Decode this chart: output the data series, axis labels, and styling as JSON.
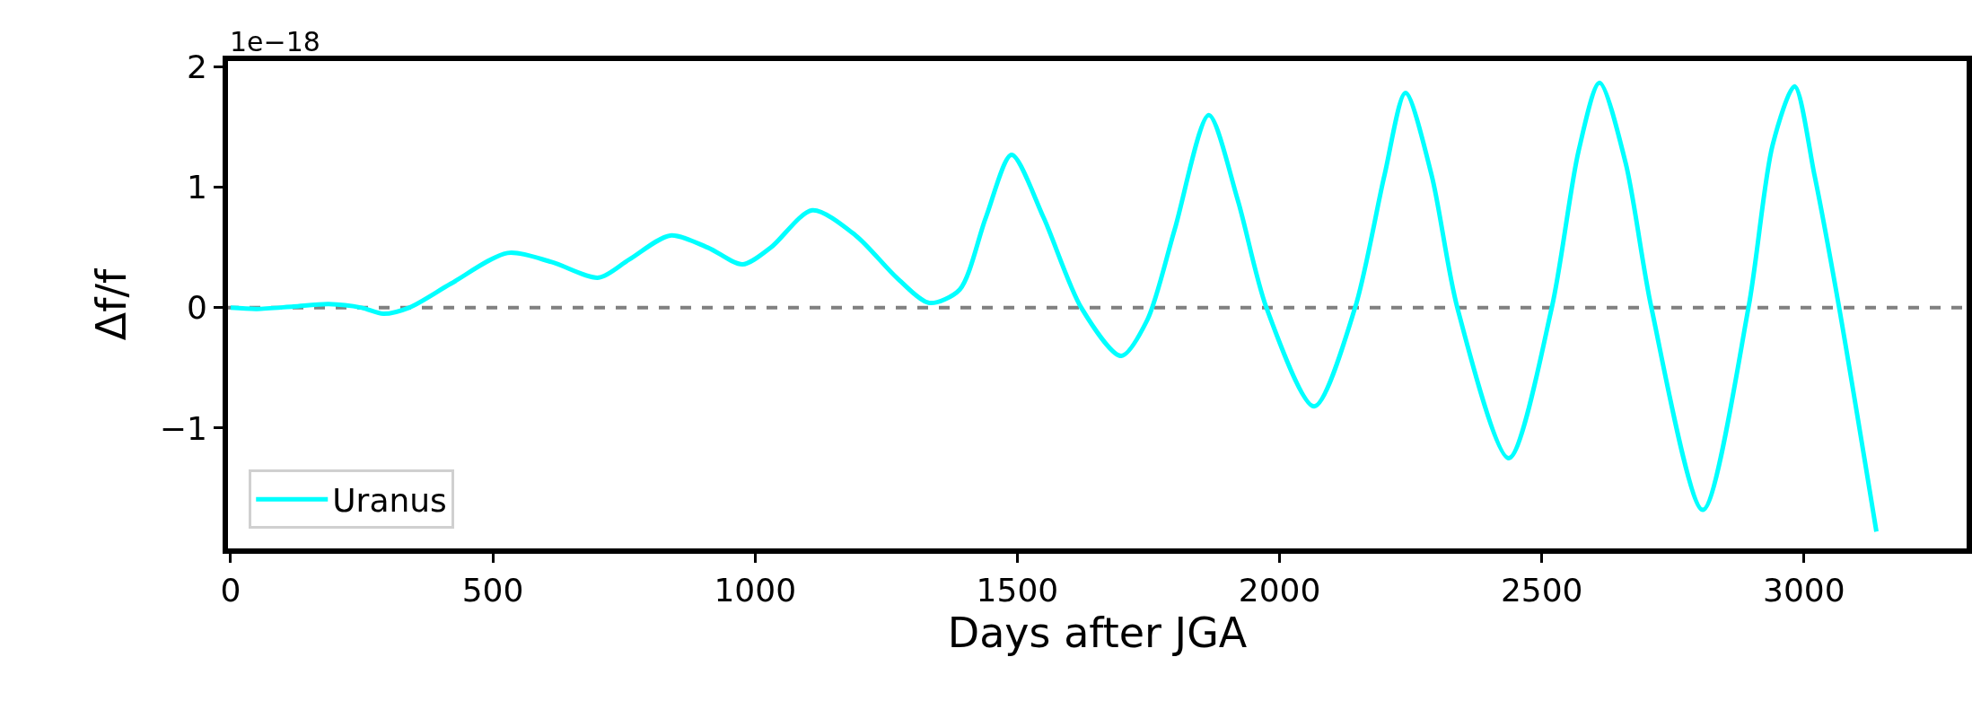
{
  "chart_data": {
    "type": "line",
    "xlabel": "Days after JGA",
    "ylabel": "Δf/f",
    "annotations": [
      "1e−18"
    ],
    "x": [
      0,
      50,
      120,
      187,
      250,
      291,
      340,
      420,
      528,
      612,
      702,
      760,
      838,
      910,
      976,
      1030,
      1109,
      1192,
      1270,
      1332,
      1390,
      1440,
      1489,
      1550,
      1622,
      1698,
      1748,
      1800,
      1865,
      1920,
      1975,
      2066,
      2144,
      2200,
      2240,
      2290,
      2339,
      2437,
      2519,
      2570,
      2610,
      2660,
      2709,
      2807,
      2894,
      2940,
      2982,
      3020,
      3067,
      3138
    ],
    "series": [
      {
        "name": "Uranus",
        "color": "#00ffff",
        "values": [
          0,
          -0.01,
          0.01,
          0.03,
          0.0,
          -0.05,
          0.0,
          0.2,
          0.455,
          0.38,
          0.25,
          0.4,
          0.6,
          0.5,
          0.36,
          0.5,
          0.81,
          0.6,
          0.25,
          0.04,
          0.15,
          0.75,
          1.27,
          0.75,
          0.0,
          -0.4,
          -0.1,
          0.65,
          1.6,
          0.9,
          0.0,
          -0.82,
          0.0,
          1.1,
          1.785,
          1.1,
          0.0,
          -1.25,
          0.0,
          1.3,
          1.87,
          1.2,
          0.0,
          -1.68,
          0.0,
          1.35,
          1.84,
          1.1,
          0.0,
          -1.86
        ]
      }
    ],
    "xlim": [
      -5,
      3310
    ],
    "ylim": [
      -2.0,
      2.05
    ],
    "xticks": [
      0,
      500,
      1000,
      1500,
      2000,
      2500,
      3000
    ],
    "yticks": [
      {
        "value": -1,
        "label": "−1"
      },
      0,
      1,
      2
    ],
    "ref_lines": [
      {
        "axis": "y",
        "value": 0,
        "color": "#808080",
        "line_style": "dashed"
      }
    ],
    "legend": "bottom left",
    "grid": false,
    "line_style": "solid",
    "marker": "none"
  }
}
